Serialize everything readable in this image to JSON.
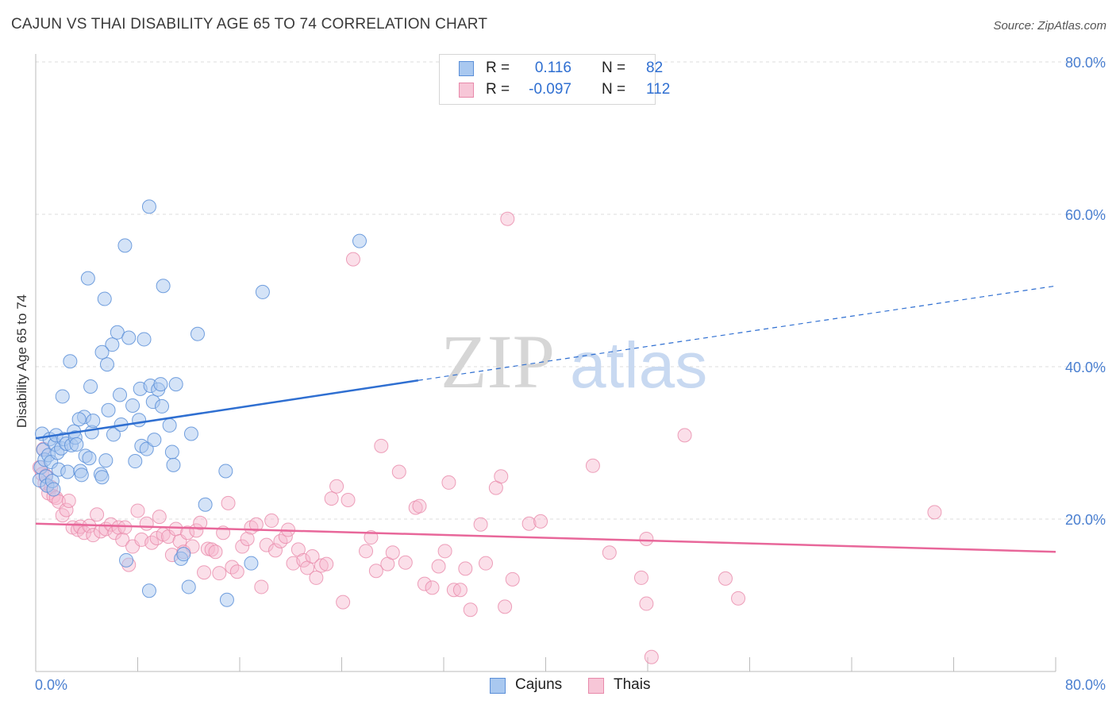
{
  "title": "CAJUN VS THAI DISABILITY AGE 65 TO 74 CORRELATION CHART",
  "source": "Source: ZipAtlas.com",
  "watermark": {
    "zip": "ZIP",
    "atlas": "atlas"
  },
  "colors": {
    "cajun_fill": "#a9c8f0",
    "cajun_stroke": "#5b8fd8",
    "cajun_line": "#2f6fd1",
    "thai_fill": "#f7b8cf",
    "thai_stroke": "#e889aa",
    "thai_line": "#e8679a",
    "axis_label": "#4a7fd0",
    "grid": "#dddddd"
  },
  "legend": {
    "rows": [
      {
        "r_label": "R =",
        "r_value": "0.116",
        "n_label": "N =",
        "n_value": "82"
      },
      {
        "r_label": "R =",
        "r_value": "-0.097",
        "n_label": "N =",
        "n_value": "112"
      }
    ]
  },
  "bottom_legend": {
    "cajuns": "Cajuns",
    "thais": "Thais"
  },
  "chart_data": {
    "type": "scatter",
    "xlabel": "",
    "ylabel": "Disability Age 65 to 74",
    "xlim": [
      0,
      80
    ],
    "ylim": [
      0,
      80
    ],
    "x_tick_labels": [
      "0.0%",
      "80.0%"
    ],
    "y_tick_labels": [
      "20.0%",
      "40.0%",
      "60.0%",
      "80.0%"
    ],
    "y_ticks": [
      20,
      40,
      60,
      80
    ],
    "grid": true,
    "series": [
      {
        "name": "Cajuns",
        "trend": {
          "x": [
            0,
            30
          ],
          "y": [
            30.6,
            38.2
          ],
          "dashed_to": [
            80,
            50.6
          ]
        },
        "points": [
          [
            0.3,
            25.1
          ],
          [
            0.4,
            26.8
          ],
          [
            0.5,
            31.2
          ],
          [
            0.6,
            29.1
          ],
          [
            0.7,
            27.8
          ],
          [
            0.8,
            25.6
          ],
          [
            0.9,
            24.4
          ],
          [
            1.0,
            28.4
          ],
          [
            1.1,
            30.5
          ],
          [
            1.2,
            27.5
          ],
          [
            1.3,
            25.0
          ],
          [
            1.5,
            29.8
          ],
          [
            1.6,
            31.0
          ],
          [
            1.7,
            28.7
          ],
          [
            1.8,
            26.5
          ],
          [
            2.0,
            29.3
          ],
          [
            2.1,
            36.1
          ],
          [
            2.2,
            30.5
          ],
          [
            2.4,
            29.9
          ],
          [
            2.5,
            26.2
          ],
          [
            2.7,
            40.7
          ],
          [
            2.8,
            29.7
          ],
          [
            3.0,
            31.5
          ],
          [
            3.1,
            30.7
          ],
          [
            3.2,
            29.8
          ],
          [
            3.5,
            26.3
          ],
          [
            3.6,
            25.8
          ],
          [
            3.8,
            33.4
          ],
          [
            3.9,
            28.3
          ],
          [
            4.1,
            51.6
          ],
          [
            4.2,
            28.0
          ],
          [
            4.3,
            37.4
          ],
          [
            4.4,
            31.4
          ],
          [
            4.5,
            32.9
          ],
          [
            5.1,
            25.9
          ],
          [
            5.2,
            25.5
          ],
          [
            5.4,
            48.9
          ],
          [
            5.5,
            27.7
          ],
          [
            5.7,
            34.3
          ],
          [
            6.0,
            42.9
          ],
          [
            6.1,
            31.1
          ],
          [
            6.4,
            44.5
          ],
          [
            6.6,
            36.3
          ],
          [
            6.7,
            32.4
          ],
          [
            5.6,
            40.3
          ],
          [
            5.2,
            41.9
          ],
          [
            7.0,
            55.9
          ],
          [
            7.1,
            14.6
          ],
          [
            7.3,
            43.8
          ],
          [
            7.6,
            34.9
          ],
          [
            7.8,
            27.6
          ],
          [
            8.1,
            33.0
          ],
          [
            8.2,
            37.1
          ],
          [
            8.3,
            29.6
          ],
          [
            8.5,
            43.6
          ],
          [
            8.7,
            29.2
          ],
          [
            8.9,
            61.0
          ],
          [
            8.9,
            10.6
          ],
          [
            9.0,
            37.5
          ],
          [
            9.2,
            35.4
          ],
          [
            9.3,
            30.4
          ],
          [
            9.6,
            37.0
          ],
          [
            9.8,
            37.7
          ],
          [
            9.9,
            34.8
          ],
          [
            10.0,
            50.6
          ],
          [
            10.5,
            32.3
          ],
          [
            10.7,
            28.8
          ],
          [
            10.8,
            27.1
          ],
          [
            11.0,
            37.7
          ],
          [
            11.4,
            14.8
          ],
          [
            11.6,
            15.4
          ],
          [
            12.0,
            11.1
          ],
          [
            12.2,
            31.2
          ],
          [
            12.7,
            44.3
          ],
          [
            13.3,
            21.9
          ],
          [
            14.9,
            26.3
          ],
          [
            15.0,
            9.4
          ],
          [
            16.9,
            14.2
          ],
          [
            17.8,
            49.8
          ],
          [
            25.4,
            56.5
          ],
          [
            1.4,
            23.9
          ],
          [
            3.4,
            33.1
          ]
        ]
      },
      {
        "name": "Thais",
        "trend": {
          "x": [
            0,
            80
          ],
          "y": [
            19.4,
            15.7
          ]
        },
        "points": [
          [
            0.3,
            26.8
          ],
          [
            0.5,
            25.9
          ],
          [
            0.6,
            29.2
          ],
          [
            0.7,
            24.7
          ],
          [
            0.8,
            25.7
          ],
          [
            1.0,
            23.4
          ],
          [
            1.2,
            24.2
          ],
          [
            1.4,
            23.0
          ],
          [
            1.6,
            22.8
          ],
          [
            1.8,
            22.3
          ],
          [
            2.1,
            20.5
          ],
          [
            2.4,
            21.2
          ],
          [
            2.6,
            22.4
          ],
          [
            2.9,
            18.9
          ],
          [
            3.3,
            18.6
          ],
          [
            3.5,
            19.0
          ],
          [
            3.8,
            18.2
          ],
          [
            4.2,
            19.1
          ],
          [
            4.5,
            17.9
          ],
          [
            4.8,
            20.6
          ],
          [
            5.1,
            18.4
          ],
          [
            5.5,
            18.7
          ],
          [
            5.9,
            19.3
          ],
          [
            6.2,
            18.2
          ],
          [
            6.5,
            18.9
          ],
          [
            6.8,
            17.3
          ],
          [
            7.0,
            18.9
          ],
          [
            7.3,
            14.0
          ],
          [
            7.6,
            16.4
          ],
          [
            8.0,
            21.1
          ],
          [
            8.3,
            17.3
          ],
          [
            8.7,
            19.4
          ],
          [
            9.1,
            16.9
          ],
          [
            9.5,
            17.5
          ],
          [
            9.7,
            20.3
          ],
          [
            10.0,
            18.0
          ],
          [
            10.4,
            17.7
          ],
          [
            10.7,
            15.3
          ],
          [
            11.0,
            18.7
          ],
          [
            11.3,
            17.1
          ],
          [
            11.6,
            15.7
          ],
          [
            11.9,
            18.2
          ],
          [
            12.3,
            16.4
          ],
          [
            12.6,
            18.5
          ],
          [
            12.9,
            19.5
          ],
          [
            13.2,
            13.0
          ],
          [
            13.5,
            16.1
          ],
          [
            13.8,
            16.0
          ],
          [
            14.1,
            15.7
          ],
          [
            14.4,
            12.9
          ],
          [
            14.7,
            18.2
          ],
          [
            15.1,
            22.1
          ],
          [
            15.4,
            13.7
          ],
          [
            15.8,
            13.1
          ],
          [
            16.2,
            16.4
          ],
          [
            16.6,
            17.4
          ],
          [
            16.9,
            18.9
          ],
          [
            17.3,
            19.3
          ],
          [
            17.7,
            11.1
          ],
          [
            18.1,
            16.6
          ],
          [
            18.5,
            19.8
          ],
          [
            18.8,
            15.9
          ],
          [
            19.2,
            17.1
          ],
          [
            19.6,
            17.7
          ],
          [
            19.8,
            18.6
          ],
          [
            20.2,
            14.2
          ],
          [
            20.6,
            16.0
          ],
          [
            21.0,
            14.6
          ],
          [
            21.3,
            13.6
          ],
          [
            21.7,
            15.1
          ],
          [
            22.0,
            12.3
          ],
          [
            22.4,
            13.9
          ],
          [
            22.8,
            14.1
          ],
          [
            23.2,
            22.7
          ],
          [
            23.6,
            24.3
          ],
          [
            24.1,
            9.1
          ],
          [
            24.5,
            22.5
          ],
          [
            24.9,
            54.1
          ],
          [
            25.9,
            15.8
          ],
          [
            26.3,
            17.6
          ],
          [
            26.7,
            13.2
          ],
          [
            27.1,
            29.6
          ],
          [
            27.6,
            14.1
          ],
          [
            28.0,
            15.6
          ],
          [
            28.5,
            26.2
          ],
          [
            29.0,
            14.3
          ],
          [
            29.8,
            21.5
          ],
          [
            30.1,
            21.7
          ],
          [
            30.5,
            11.5
          ],
          [
            31.1,
            11.0
          ],
          [
            31.6,
            13.8
          ],
          [
            32.1,
            15.8
          ],
          [
            32.4,
            24.8
          ],
          [
            32.8,
            10.7
          ],
          [
            33.3,
            10.7
          ],
          [
            33.7,
            13.5
          ],
          [
            34.1,
            8.1
          ],
          [
            34.9,
            19.3
          ],
          [
            35.3,
            14.2
          ],
          [
            36.1,
            24.1
          ],
          [
            36.5,
            25.6
          ],
          [
            36.8,
            8.5
          ],
          [
            37.0,
            59.4
          ],
          [
            37.4,
            12.1
          ],
          [
            38.7,
            19.4
          ],
          [
            39.6,
            19.7
          ],
          [
            43.7,
            27.0
          ],
          [
            45.0,
            15.6
          ],
          [
            47.5,
            12.3
          ],
          [
            47.9,
            8.9
          ],
          [
            47.9,
            17.4
          ],
          [
            48.3,
            1.9
          ],
          [
            50.9,
            31.0
          ],
          [
            54.1,
            12.2
          ],
          [
            55.1,
            9.6
          ],
          [
            70.5,
            20.9
          ]
        ]
      }
    ]
  }
}
